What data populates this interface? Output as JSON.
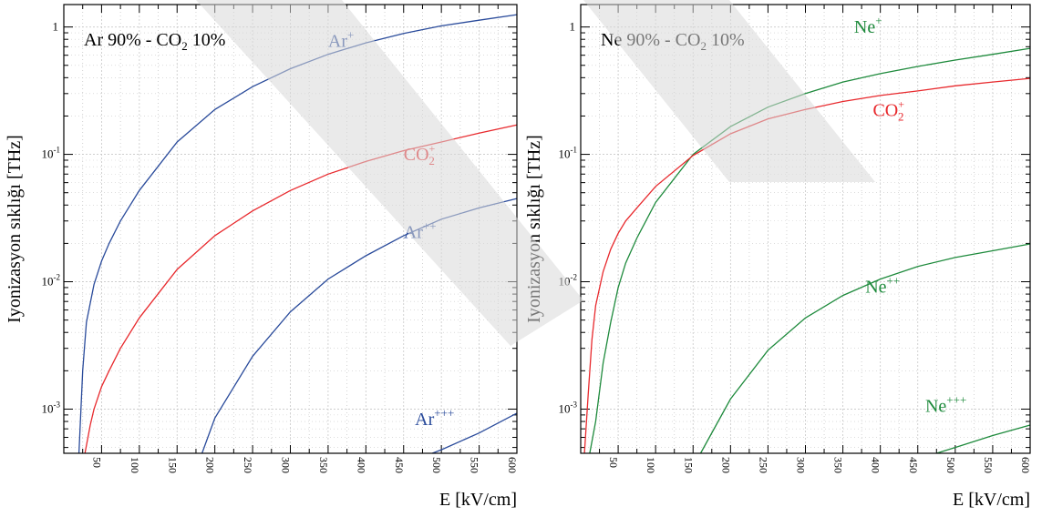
{
  "figure": {
    "watermark_color": "#d9d9d9",
    "grid_color": "#c8c8c8",
    "axis_color": "#000000"
  },
  "chart_data": [
    {
      "type": "line",
      "title": "Ar 90% - CO",
      "title_sub": "2",
      "title_tail": " 10%",
      "xlabel": "E [kV/cm]",
      "ylabel": "Iyonizasyon sıklığı  [THz]",
      "xlim": [
        0,
        600
      ],
      "ylim": [
        0.00045,
        1.5
      ],
      "yscale": "log",
      "grid": true,
      "x_ticks": [
        "50",
        "100",
        "150",
        "200",
        "250",
        "300",
        "350",
        "400",
        "450",
        "500",
        "550",
        "600"
      ],
      "y_ticks": [
        {
          "base": "1",
          "exp": ""
        },
        {
          "base": "10",
          "exp": "-1"
        },
        {
          "base": "10",
          "exp": "-2"
        },
        {
          "base": "10",
          "exp": "-3"
        }
      ],
      "series": [
        {
          "name": "Ar",
          "sup": "+",
          "sub": "",
          "color": "#2a4b9b",
          "x": [
            20,
            25,
            30,
            40,
            50,
            60,
            75,
            100,
            150,
            200,
            250,
            300,
            350,
            400,
            450,
            500,
            550,
            600
          ],
          "y": [
            0.00045,
            0.002,
            0.0048,
            0.0095,
            0.0145,
            0.02,
            0.03,
            0.052,
            0.125,
            0.225,
            0.34,
            0.47,
            0.61,
            0.75,
            0.89,
            1.02,
            1.13,
            1.25
          ]
        },
        {
          "name": "CO",
          "sup": "+",
          "sub": "2",
          "color": "#e8292d",
          "x": [
            28,
            35,
            40,
            50,
            60,
            75,
            100,
            150,
            200,
            250,
            300,
            350,
            400,
            450,
            500,
            550,
            600
          ],
          "y": [
            0.00045,
            0.00075,
            0.001,
            0.0015,
            0.002,
            0.003,
            0.0052,
            0.0125,
            0.023,
            0.036,
            0.052,
            0.07,
            0.088,
            0.107,
            0.125,
            0.147,
            0.17
          ]
        },
        {
          "name": "Ar",
          "sup": "++",
          "sub": "",
          "color": "#2a4b9b",
          "x": [
            183,
            200,
            250,
            300,
            350,
            400,
            450,
            500,
            550,
            600
          ],
          "y": [
            0.00045,
            0.00085,
            0.0026,
            0.0058,
            0.0105,
            0.016,
            0.023,
            0.031,
            0.038,
            0.045
          ]
        },
        {
          "name": "Ar",
          "sup": "+++",
          "sub": "",
          "color": "#2a4b9b",
          "x": [
            488,
            500,
            550,
            600
          ],
          "y": [
            0.00045,
            0.00048,
            0.00065,
            0.00093
          ]
        }
      ],
      "labels": [
        {
          "series": 0,
          "at": [
            350,
            0.7
          ]
        },
        {
          "series": 1,
          "at": [
            450,
            0.09
          ]
        },
        {
          "series": 2,
          "at": [
            450,
            0.022
          ]
        },
        {
          "series": 3,
          "at": [
            465,
            0.00075
          ]
        }
      ]
    },
    {
      "type": "line",
      "title": "Ne 90% - CO",
      "title_sub": "2",
      "title_tail": " 10%",
      "xlabel": "E [kV/cm]",
      "ylabel": "Iyonizasyon sıklığı  [THz]",
      "xlim": [
        0,
        600
      ],
      "ylim": [
        0.00045,
        1.5
      ],
      "yscale": "log",
      "grid": true,
      "x_ticks": [
        "50",
        "100",
        "150",
        "200",
        "250",
        "300",
        "350",
        "400",
        "450",
        "500",
        "550",
        "600"
      ],
      "y_ticks": [
        {
          "base": "1",
          "exp": ""
        },
        {
          "base": "10",
          "exp": "-1"
        },
        {
          "base": "10",
          "exp": "-2"
        },
        {
          "base": "10",
          "exp": "-3"
        }
      ],
      "series": [
        {
          "name": "Ne",
          "sup": "+",
          "sub": "",
          "color": "#1e8a3c",
          "x": [
            12,
            20,
            30,
            40,
            50,
            60,
            75,
            100,
            150,
            200,
            250,
            300,
            350,
            400,
            450,
            500,
            550,
            600
          ],
          "y": [
            0.00045,
            0.0008,
            0.0023,
            0.0048,
            0.009,
            0.014,
            0.022,
            0.042,
            0.1,
            0.165,
            0.235,
            0.3,
            0.37,
            0.43,
            0.49,
            0.55,
            0.61,
            0.68
          ]
        },
        {
          "name": "CO",
          "sup": "+",
          "sub": "2",
          "color": "#e8292d",
          "x": [
            5,
            10,
            15,
            20,
            30,
            40,
            50,
            60,
            75,
            100,
            150,
            200,
            250,
            300,
            350,
            400,
            450,
            500,
            550,
            600
          ],
          "y": [
            0.00045,
            0.0013,
            0.0035,
            0.0065,
            0.012,
            0.018,
            0.024,
            0.03,
            0.038,
            0.056,
            0.098,
            0.145,
            0.19,
            0.225,
            0.26,
            0.29,
            0.315,
            0.345,
            0.37,
            0.395
          ]
        },
        {
          "name": "Ne",
          "sup": "++",
          "sub": "",
          "color": "#1e8a3c",
          "x": [
            160,
            200,
            250,
            300,
            350,
            400,
            450,
            500,
            550,
            600
          ],
          "y": [
            0.00045,
            0.0012,
            0.0029,
            0.0052,
            0.0078,
            0.0105,
            0.0132,
            0.0155,
            0.0175,
            0.0198
          ]
        },
        {
          "name": "Ne",
          "sup": "+++",
          "sub": "",
          "color": "#1e8a3c",
          "x": [
            475,
            500,
            550,
            600
          ],
          "y": [
            0.00045,
            0.0005,
            0.00062,
            0.00075
          ]
        }
      ],
      "labels": [
        {
          "series": 0,
          "at": [
            365,
            0.9
          ]
        },
        {
          "series": 1,
          "at": [
            390,
            0.2
          ]
        },
        {
          "series": 2,
          "at": [
            380,
            0.0082
          ]
        },
        {
          "series": 3,
          "at": [
            460,
            0.00095
          ]
        }
      ]
    }
  ]
}
